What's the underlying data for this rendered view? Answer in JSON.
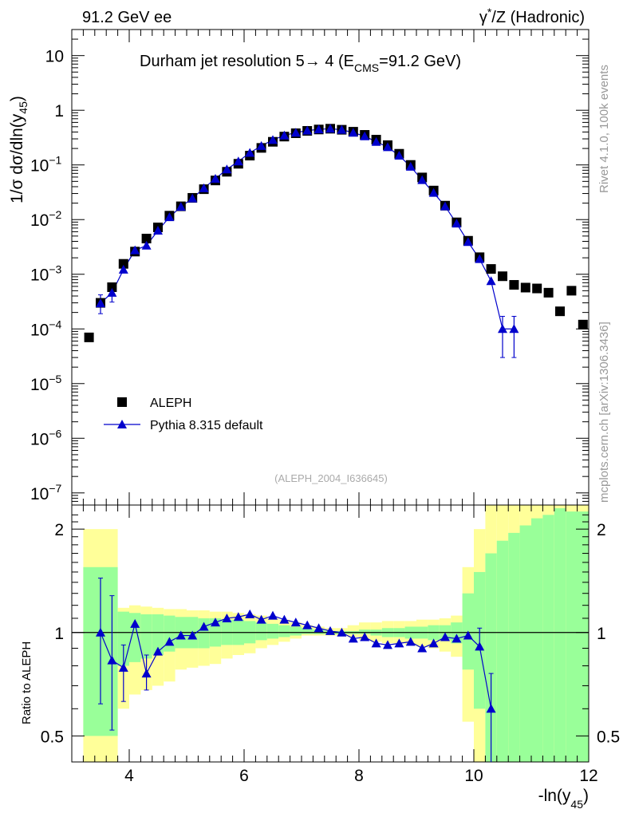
{
  "header": {
    "left": "91.2 GeV ee",
    "right_parts": [
      "γ",
      "*",
      "/Z (Hadronic)"
    ]
  },
  "side_labels": {
    "rivet": "Rivet 4.1.0,  100k events",
    "mcplots": "mcplots.cern.ch [arXiv:1306.3436]"
  },
  "watermark": "(ALEPH_2004_I636645)",
  "chart_data": [
    {
      "type": "scatter",
      "panel": "main",
      "title_parts": [
        "Durham jet resolution 5",
        "→",
        "  4 (E",
        "CMS",
        "=91.2 GeV)"
      ],
      "ylabel_parts": [
        "1/σ  dσ/dln(y",
        "45",
        ")"
      ],
      "yscale": "log",
      "ylim": [
        6e-08,
        30
      ],
      "xlim": [
        3.0,
        12.0
      ],
      "y_ticks": [
        {
          "v": 10,
          "m": "10",
          "e": ""
        },
        {
          "v": 1,
          "m": "1",
          "e": ""
        },
        {
          "v": 0.1,
          "m": "10",
          "e": "−1"
        },
        {
          "v": 0.01,
          "m": "10",
          "e": "−2"
        },
        {
          "v": 0.001,
          "m": "10",
          "e": "−3"
        },
        {
          "v": 0.0001,
          "m": "10",
          "e": "−4"
        },
        {
          "v": 1e-05,
          "m": "10",
          "e": "−5"
        },
        {
          "v": 1e-06,
          "m": "10",
          "e": "−6"
        },
        {
          "v": 1e-07,
          "m": "10",
          "e": "−7"
        }
      ],
      "legend": {
        "position": "lower-left",
        "entries": [
          "ALEPH",
          "Pythia 8.315 default"
        ]
      },
      "series": [
        {
          "name": "ALEPH",
          "marker": "square",
          "color": "#000000",
          "x": [
            3.3,
            3.5,
            3.7,
            3.9,
            4.1,
            4.3,
            4.5,
            4.7,
            4.9,
            5.1,
            5.3,
            5.5,
            5.7,
            5.9,
            6.1,
            6.3,
            6.5,
            6.7,
            6.9,
            7.1,
            7.3,
            7.5,
            7.7,
            7.9,
            8.1,
            8.3,
            8.5,
            8.7,
            8.9,
            9.1,
            9.3,
            9.5,
            9.7,
            9.9,
            10.1,
            10.3,
            10.5,
            10.7,
            10.9,
            11.1,
            11.3,
            11.5,
            11.7,
            11.9
          ],
          "y": [
            7e-05,
            0.0003,
            0.00058,
            0.00155,
            0.0026,
            0.0045,
            0.0072,
            0.0118,
            0.0175,
            0.025,
            0.036,
            0.052,
            0.075,
            0.105,
            0.148,
            0.205,
            0.265,
            0.33,
            0.38,
            0.42,
            0.445,
            0.46,
            0.44,
            0.405,
            0.355,
            0.29,
            0.23,
            0.16,
            0.1,
            0.059,
            0.034,
            0.018,
            0.0089,
            0.0041,
            0.00205,
            0.00125,
            0.00092,
            0.00064,
            0.00057,
            0.00055,
            0.00046,
            0.00021,
            0.0005,
            0.00012
          ]
        },
        {
          "name": "Pythia 8.315 default",
          "marker": "triangle",
          "color": "#0000cc",
          "x": [
            3.5,
            3.7,
            3.9,
            4.1,
            4.3,
            4.5,
            4.7,
            4.9,
            5.1,
            5.3,
            5.5,
            5.7,
            5.9,
            6.1,
            6.3,
            6.5,
            6.7,
            6.9,
            7.1,
            7.3,
            7.5,
            7.7,
            7.9,
            8.1,
            8.3,
            8.5,
            8.7,
            8.9,
            9.1,
            9.3,
            9.5,
            9.7,
            9.9,
            10.1,
            10.3,
            10.5,
            10.7
          ],
          "y": [
            0.000295,
            0.00046,
            0.00122,
            0.00275,
            0.00335,
            0.0063,
            0.0111,
            0.0172,
            0.0245,
            0.0375,
            0.056,
            0.083,
            0.116,
            0.167,
            0.223,
            0.287,
            0.346,
            0.39,
            0.425,
            0.448,
            0.46,
            0.44,
            0.39,
            0.335,
            0.265,
            0.212,
            0.148,
            0.093,
            0.053,
            0.031,
            0.0175,
            0.0085,
            0.0039,
            0.0019,
            0.00075,
            0.0001,
            0.0001
          ],
          "err_low": [
            0.00019,
            0.00031,
            null,
            null,
            null,
            null,
            null,
            null,
            null,
            null,
            null,
            null,
            null,
            null,
            null,
            null,
            null,
            null,
            null,
            null,
            null,
            null,
            null,
            null,
            null,
            null,
            null,
            null,
            null,
            null,
            null,
            null,
            null,
            null,
            null,
            3e-05,
            3e-05
          ],
          "err_high": [
            0.00042,
            0.0006,
            null,
            null,
            null,
            null,
            null,
            null,
            null,
            null,
            null,
            null,
            null,
            null,
            null,
            null,
            null,
            null,
            null,
            null,
            null,
            null,
            null,
            null,
            null,
            null,
            null,
            null,
            null,
            null,
            null,
            null,
            null,
            null,
            null,
            0.00017,
            0.00017
          ]
        }
      ]
    },
    {
      "type": "line",
      "panel": "ratio",
      "ylabel": "Ratio to ALEPH",
      "xlabel_parts": [
        "-ln(y",
        "45",
        ")"
      ],
      "yscale": "log",
      "ylim": [
        0.42,
        2.35
      ],
      "xlim": [
        3.0,
        12.0
      ],
      "x_ticks": [
        4,
        6,
        8,
        10,
        12
      ],
      "y_ticks": [
        0.5,
        1,
        2
      ],
      "reference_line": 1,
      "bands": {
        "edges": [
          3.2,
          3.8,
          4.0,
          4.2,
          4.4,
          4.6,
          4.8,
          5.0,
          5.2,
          5.4,
          5.6,
          5.8,
          6.0,
          6.2,
          6.4,
          6.6,
          6.8,
          7.0,
          7.2,
          7.4,
          7.6,
          7.8,
          8.0,
          8.2,
          8.4,
          8.6,
          8.8,
          9.0,
          9.2,
          9.4,
          9.6,
          9.8,
          10.0,
          10.2,
          10.4,
          10.6,
          10.8,
          11.0,
          11.2,
          11.4,
          11.6,
          12.0
        ],
        "green_low": [
          0.5,
          0.8,
          0.82,
          0.84,
          0.86,
          0.88,
          0.9,
          0.9,
          0.9,
          0.91,
          0.92,
          0.92,
          0.93,
          0.95,
          0.96,
          0.97,
          0.98,
          0.99,
          0.99,
          0.99,
          0.99,
          0.99,
          0.99,
          0.98,
          0.97,
          0.97,
          0.96,
          0.96,
          0.95,
          0.95,
          0.93,
          0.78,
          0.6,
          0.4,
          0.4,
          0.4,
          0.4,
          0.4,
          0.4,
          0.4,
          0.4
        ],
        "green_high": [
          1.55,
          1.15,
          1.14,
          1.13,
          1.13,
          1.12,
          1.11,
          1.11,
          1.1,
          1.1,
          1.09,
          1.09,
          1.08,
          1.07,
          1.06,
          1.05,
          1.04,
          1.03,
          1.02,
          1.01,
          1.01,
          1.01,
          1.02,
          1.02,
          1.03,
          1.03,
          1.04,
          1.04,
          1.05,
          1.05,
          1.07,
          1.3,
          1.5,
          1.7,
          1.85,
          1.95,
          2.05,
          2.15,
          2.2,
          2.3,
          2.25
        ],
        "yellow_low": [
          0.4,
          0.6,
          0.66,
          0.68,
          0.7,
          0.72,
          0.78,
          0.79,
          0.8,
          0.81,
          0.84,
          0.86,
          0.87,
          0.9,
          0.92,
          0.94,
          0.96,
          0.98,
          0.98,
          0.98,
          0.98,
          0.97,
          0.95,
          0.94,
          0.93,
          0.93,
          0.92,
          0.91,
          0.9,
          0.88,
          0.85,
          0.55,
          0.4,
          0.4,
          0.4,
          0.4,
          0.4,
          0.4,
          0.4,
          0.4,
          0.4
        ],
        "yellow_high": [
          2.0,
          1.18,
          1.2,
          1.19,
          1.18,
          1.17,
          1.17,
          1.16,
          1.16,
          1.15,
          1.15,
          1.14,
          1.13,
          1.12,
          1.1,
          1.09,
          1.07,
          1.05,
          1.04,
          1.03,
          1.03,
          1.05,
          1.07,
          1.07,
          1.08,
          1.08,
          1.08,
          1.09,
          1.09,
          1.1,
          1.12,
          1.55,
          2.0,
          2.4,
          2.4,
          2.4,
          2.4,
          2.4,
          2.4,
          2.4,
          2.4
        ]
      },
      "series": [
        {
          "name": "Pythia 8.315 default / ALEPH",
          "marker": "triangle",
          "color": "#0000cc",
          "x": [
            3.5,
            3.7,
            3.9,
            4.1,
            4.3,
            4.5,
            4.7,
            4.9,
            5.1,
            5.3,
            5.5,
            5.7,
            5.9,
            6.1,
            6.3,
            6.5,
            6.7,
            6.9,
            7.1,
            7.3,
            7.5,
            7.7,
            7.9,
            8.1,
            8.3,
            8.5,
            8.7,
            8.9,
            9.1,
            9.3,
            9.5,
            9.7,
            9.9,
            10.1,
            10.3
          ],
          "y": [
            1.0,
            0.83,
            0.79,
            1.06,
            0.76,
            0.88,
            0.94,
            0.98,
            0.98,
            1.04,
            1.07,
            1.1,
            1.11,
            1.13,
            1.09,
            1.12,
            1.09,
            1.07,
            1.05,
            1.03,
            1.01,
            1.0,
            0.96,
            0.97,
            0.93,
            0.92,
            0.93,
            0.94,
            0.9,
            0.93,
            0.97,
            0.96,
            0.98,
            0.91,
            0.6
          ],
          "err_low": [
            0.62,
            0.52,
            0.63,
            null,
            0.68,
            null,
            null,
            null,
            null,
            null,
            null,
            null,
            null,
            null,
            null,
            null,
            null,
            null,
            null,
            null,
            null,
            null,
            null,
            null,
            null,
            null,
            null,
            null,
            null,
            null,
            null,
            null,
            null,
            null,
            0.4
          ],
          "err_high": [
            1.44,
            1.28,
            0.92,
            null,
            0.86,
            null,
            null,
            null,
            null,
            null,
            null,
            null,
            null,
            null,
            null,
            null,
            null,
            null,
            null,
            null,
            null,
            null,
            null,
            null,
            null,
            null,
            null,
            null,
            null,
            null,
            null,
            null,
            null,
            1.03,
            0.76
          ]
        }
      ]
    }
  ]
}
